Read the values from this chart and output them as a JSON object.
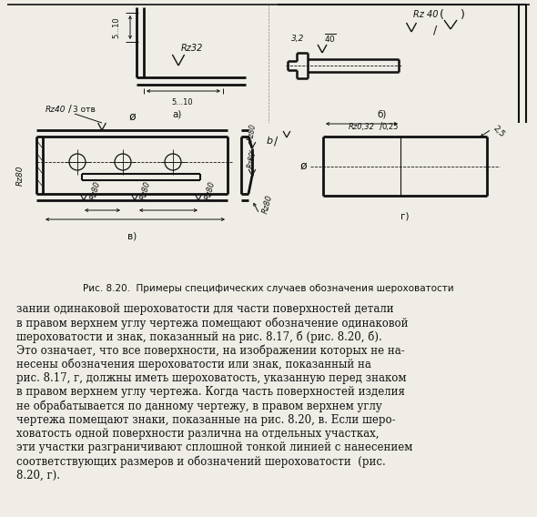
{
  "bg_color": "#f0ede6",
  "dc": "#111111",
  "fig_caption": "Рис. 8.20.  Примеры специфических случаев обозначения шероховатости",
  "body_lines": [
    "зании одинаковой шероховатости для части поверхностей детали",
    "в правом верхнем углу чертежа помещают обозначение одинаковой",
    "шероховатости и знак, показанный на рис. 8.17, б (рис. 8.20, б).",
    "Это означает, что все поверхности, на изображении которых не на-",
    "несены обозначения шероховатости или знак, показанный на",
    "рис. 8.17, г, должны иметь шероховатость, указанную перед знаком",
    "в правом верхнем углу чертежа. Когда часть поверхностей изделия",
    "не обрабатывается по данному чертежу, в правом верхнем углу",
    "чертежа помещают знаки, показанные на рис. 8.20, в. Если шеро-",
    "ховатость одной поверхности различна на отдельных участках,",
    "эти участки разграничивают сплошной тонкой линией с нанесением",
    "соответствующих размеров и обозначений шероховатости  (рис.",
    "8.20, г)."
  ]
}
